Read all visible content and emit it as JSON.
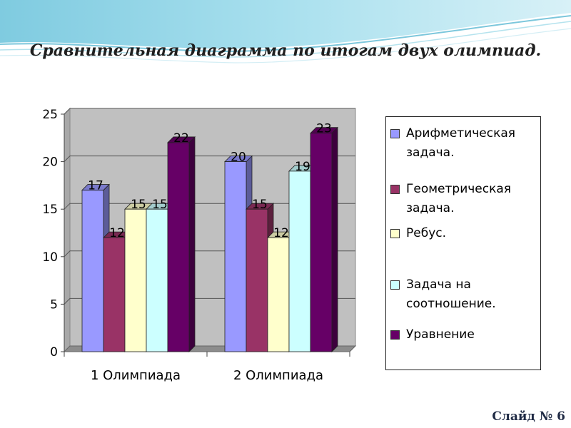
{
  "slide": {
    "title": "Сравнительная диаграмма по итогам двух олимпиад.",
    "number_label": "Слайд № 6"
  },
  "chart_data": {
    "type": "bar",
    "categories": [
      "1 Олимпиада",
      "2 Олимпиада"
    ],
    "series": [
      {
        "name": "Арифметическая задача.",
        "values": [
          17,
          20
        ],
        "color": "#9999ff"
      },
      {
        "name": "Геометрическая задача.",
        "values": [
          12,
          15
        ],
        "color": "#993366"
      },
      {
        "name": "Ребус.",
        "values": [
          15,
          12
        ],
        "color": "#ffffcc"
      },
      {
        "name": "Задача на соотношение.",
        "values": [
          15,
          19
        ],
        "color": "#ccffff"
      },
      {
        "name": "Уравнение",
        "values": [
          22,
          23
        ],
        "color": "#660066"
      }
    ],
    "ylim": [
      0,
      25
    ],
    "yticks": [
      "0",
      "5",
      "10",
      "15",
      "20",
      "25"
    ],
    "grid": true,
    "legend_position": "right",
    "style": "3d"
  }
}
